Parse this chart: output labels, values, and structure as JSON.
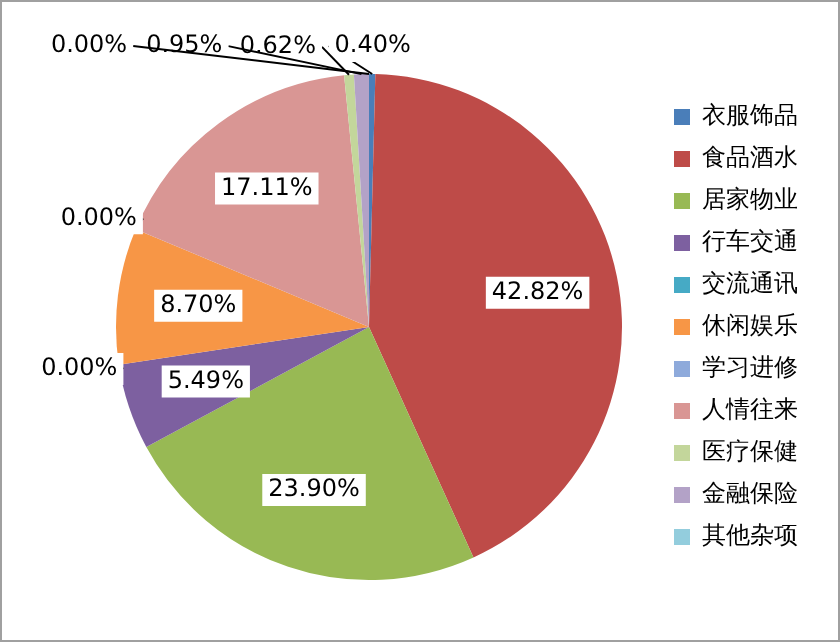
{
  "chart_data": {
    "type": "pie",
    "categories": [
      "衣服饰品",
      "食品酒水",
      "居家物业",
      "行车交通",
      "交流通讯",
      "休闲娱乐",
      "学习进修",
      "人情往来",
      "医疗保健",
      "金融保险",
      "其他杂项"
    ],
    "values": [
      0.4,
      42.82,
      23.9,
      5.49,
      0.0,
      8.7,
      0.0,
      17.11,
      0.62,
      0.95,
      0.0
    ],
    "value_labels": [
      "0.40%",
      "42.82%",
      "23.90%",
      "5.49%",
      "0.00%",
      "8.70%",
      "0.00%",
      "17.11%",
      "0.62%",
      "0.95%",
      "0.00%"
    ],
    "colors": [
      "#4a7eb9",
      "#be4b48",
      "#98b954",
      "#7d60a0",
      "#46aac5",
      "#f79646",
      "#8eaadb",
      "#d99694",
      "#c3d69b",
      "#b3a2c7",
      "#93cddd"
    ],
    "legend": "right"
  }
}
